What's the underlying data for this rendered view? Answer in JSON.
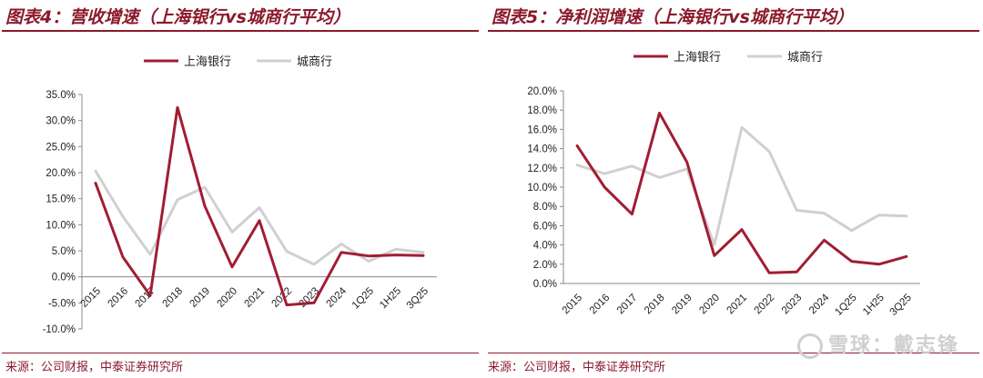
{
  "panels": [
    {
      "title": "图表4：营收增速（上海银行vs城商行平均）",
      "source": "来源：公司财报，中泰证券研究所"
    },
    {
      "title": "图表5：净利润增速（上海银行vs城商行平均）",
      "source": "来源：公司财报，中泰证券研究所"
    }
  ],
  "watermark": "雪球：戴志锋",
  "colors": {
    "accent": "#8B1A2B",
    "primary_series": "#A11D33",
    "secondary_series": "#D0D0D0"
  },
  "chart_data": [
    {
      "type": "line",
      "title": "图表4：营收增速（上海银行vs城商行平均）",
      "categories": [
        "2015",
        "2016",
        "2017",
        "2018",
        "2019",
        "2020",
        "2021",
        "2022",
        "2023",
        "2024",
        "1Q25",
        "1H25",
        "3Q25"
      ],
      "series": [
        {
          "name": "上海银行",
          "values": [
            18.0,
            3.8,
            -3.6,
            32.5,
            13.6,
            1.9,
            10.8,
            -5.4,
            -5.0,
            4.7,
            4.0,
            4.2,
            4.1
          ]
        },
        {
          "name": "城商行",
          "values": [
            20.3,
            11.6,
            4.3,
            14.8,
            17.2,
            8.6,
            13.3,
            4.9,
            2.4,
            6.3,
            3.0,
            5.3,
            4.7
          ]
        }
      ],
      "yticks": [
        "-10.0%",
        "-5.0%",
        "0.0%",
        "5.0%",
        "10.0%",
        "15.0%",
        "20.0%",
        "25.0%",
        "30.0%",
        "35.0%"
      ],
      "ylim": [
        -10,
        35
      ],
      "legend": "top"
    },
    {
      "type": "line",
      "title": "图表5：净利润增速（上海银行vs城商行平均）",
      "categories": [
        "2015",
        "2016",
        "2017",
        "2018",
        "2019",
        "2020",
        "2021",
        "2022",
        "2023",
        "2024",
        "1Q25",
        "1H25",
        "3Q25"
      ],
      "series": [
        {
          "name": "上海银行",
          "values": [
            14.3,
            10.0,
            7.2,
            17.7,
            12.6,
            2.9,
            5.6,
            1.1,
            1.2,
            4.5,
            2.3,
            2.0,
            2.8
          ]
        },
        {
          "name": "城商行",
          "values": [
            12.3,
            11.4,
            12.2,
            11.0,
            11.9,
            4.0,
            16.2,
            13.7,
            7.6,
            7.3,
            5.5,
            7.1,
            7.0
          ]
        }
      ],
      "yticks": [
        "0.0%",
        "2.0%",
        "4.0%",
        "6.0%",
        "8.0%",
        "10.0%",
        "12.0%",
        "14.0%",
        "16.0%",
        "18.0%",
        "20.0%"
      ],
      "ylim": [
        0,
        20
      ],
      "legend": "top"
    }
  ]
}
